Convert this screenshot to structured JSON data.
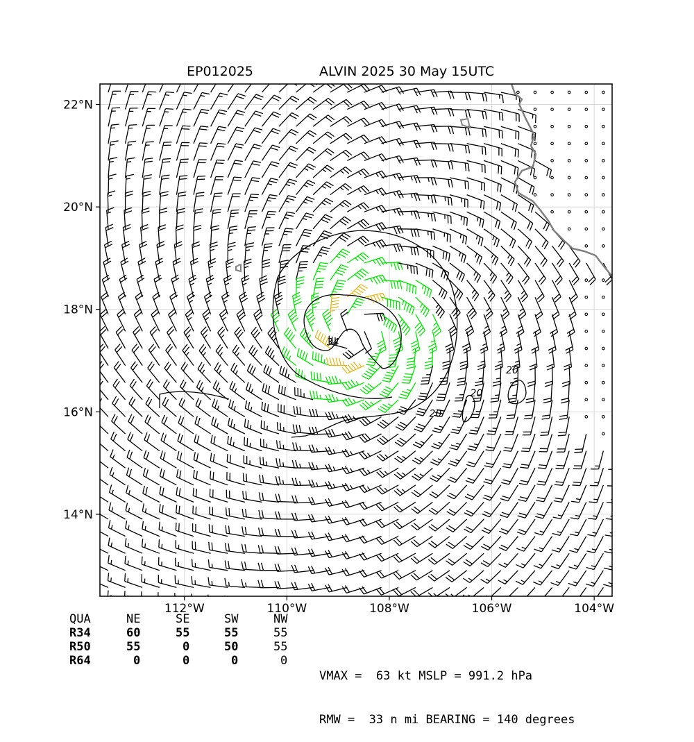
{
  "title": {
    "storm_id": "EP012025",
    "storm_info": "ALVIN 2025 30 May 15UTC"
  },
  "map": {
    "lon_range": [
      -113.65,
      -103.65
    ],
    "lat_range": [
      12.4,
      22.4
    ],
    "lon_ticks": [
      {
        "value": -112,
        "label": "112°W"
      },
      {
        "value": -110,
        "label": "110°W"
      },
      {
        "value": -108,
        "label": "108°W"
      },
      {
        "value": -106,
        "label": "106°W"
      },
      {
        "value": -104,
        "label": "104°W"
      }
    ],
    "lat_ticks": [
      {
        "value": 14,
        "label": "14°N"
      },
      {
        "value": 16,
        "label": "16°N"
      },
      {
        "value": 18,
        "label": "18°N"
      },
      {
        "value": 20,
        "label": "20°N"
      },
      {
        "value": 22,
        "label": "22°N"
      }
    ],
    "storm_center": {
      "lon": -108.6,
      "lat": 17.55
    },
    "contour_labels": [
      {
        "text": "34",
        "lon": -109.1,
        "lat": 17.3
      },
      {
        "text": "20",
        "lon": -107.1,
        "lat": 15.9
      },
      {
        "text": "20",
        "lon": -106.3,
        "lat": 16.3
      },
      {
        "text": "20",
        "lon": -105.6,
        "lat": 16.75
      }
    ],
    "colors": {
      "barb_calm": "#000000",
      "barb_34kt": "#00e600",
      "barb_50kt": "#e6b81e",
      "coastline": "#808080",
      "contour": "#000000",
      "gridline": "#d8d8d8"
    }
  },
  "wind_radii": {
    "header": [
      "QUA",
      "NE",
      "SE",
      "SW",
      "NW"
    ],
    "rows": [
      [
        "R34",
        "60",
        "55",
        "55",
        "55"
      ],
      [
        "R50",
        "55",
        "0",
        "50",
        "55"
      ],
      [
        "R64",
        "0",
        "0",
        "0",
        "0"
      ]
    ]
  },
  "stats": {
    "line1": "VMAX =  63 kt MSLP = 991.2 hPa",
    "line2": "RMW =  33 n mi BEARING = 140 degrees"
  }
}
